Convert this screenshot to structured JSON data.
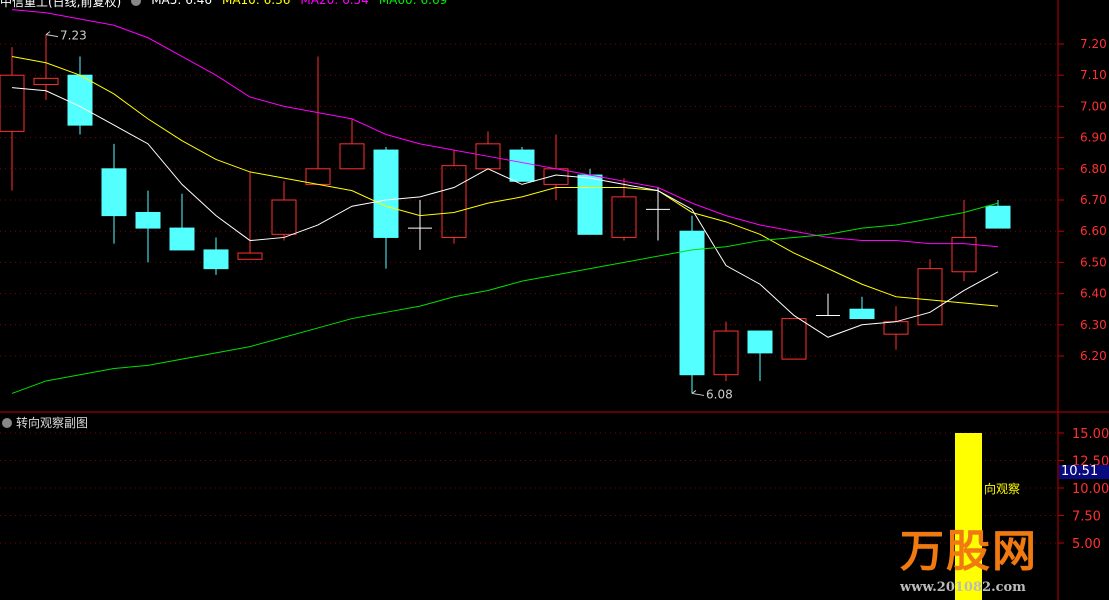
{
  "header": {
    "title": "中信重工(日线,前复权)",
    "ma5": "MA5: 6.46",
    "ma10": "MA10: 6.36",
    "ma20": "MA20: 6.54",
    "ma60": "MA60: 6.69"
  },
  "colors": {
    "up": "#ff3030",
    "down": "#54ffff",
    "flat": "#ffffff",
    "ma5": "#ffffff",
    "ma10": "#ffff00",
    "ma20": "#ff00ff",
    "ma60": "#00e000",
    "axis": "#c00000",
    "text_axis": "#ff3030"
  },
  "subchart": {
    "title": "转向观察副图",
    "series_label": "向观察",
    "current_value": "10.51",
    "bar_value": 15,
    "ticks": [
      "15.00",
      "12.50",
      "10.00",
      "7.50",
      "5.00"
    ]
  },
  "logo": {
    "text": "万股网",
    "url": "www.201082.com"
  },
  "chart_data": {
    "type": "candlestick",
    "yticks": [
      "7.20",
      "7.10",
      "7.00",
      "6.90",
      "6.80",
      "6.70",
      "6.60",
      "6.50",
      "6.40",
      "6.30",
      "6.20"
    ],
    "ylim": [
      6.05,
      7.3
    ],
    "annotations": [
      {
        "text": "7.23",
        "price": 7.23,
        "index": 1
      },
      {
        "text": "6.08",
        "price": 6.08,
        "index": 20
      }
    ],
    "ohlc": [
      [
        6.92,
        7.19,
        6.73,
        7.1
      ],
      [
        7.07,
        7.23,
        7.02,
        7.09
      ],
      [
        7.1,
        7.16,
        6.91,
        6.94
      ],
      [
        6.8,
        6.88,
        6.56,
        6.65
      ],
      [
        6.66,
        6.73,
        6.5,
        6.61
      ],
      [
        6.61,
        6.72,
        6.54,
        6.54
      ],
      [
        6.54,
        6.58,
        6.46,
        6.48
      ],
      [
        6.51,
        6.79,
        6.51,
        6.53
      ],
      [
        6.59,
        6.76,
        6.57,
        6.7
      ],
      [
        6.75,
        7.16,
        6.75,
        6.8
      ],
      [
        6.8,
        6.96,
        6.8,
        6.88
      ],
      [
        6.86,
        6.87,
        6.48,
        6.58
      ],
      [
        6.61,
        6.7,
        6.54,
        6.61
      ],
      [
        6.58,
        6.86,
        6.56,
        6.81
      ],
      [
        6.8,
        6.92,
        6.8,
        6.88
      ],
      [
        6.86,
        6.87,
        6.76,
        6.76
      ],
      [
        6.75,
        6.91,
        6.7,
        6.8
      ],
      [
        6.78,
        6.8,
        6.59,
        6.59
      ],
      [
        6.58,
        6.77,
        6.57,
        6.71
      ],
      [
        6.67,
        6.74,
        6.57,
        6.67
      ],
      [
        6.6,
        6.65,
        6.08,
        6.14
      ],
      [
        6.14,
        6.31,
        6.12,
        6.28
      ],
      [
        6.28,
        6.28,
        6.12,
        6.21
      ],
      [
        6.19,
        6.32,
        6.19,
        6.32
      ],
      [
        6.33,
        6.4,
        6.33,
        6.33
      ],
      [
        6.35,
        6.39,
        6.32,
        6.32
      ],
      [
        6.27,
        6.36,
        6.22,
        6.31
      ],
      [
        6.3,
        6.51,
        6.3,
        6.48
      ],
      [
        6.47,
        6.7,
        6.44,
        6.58
      ],
      [
        6.68,
        6.7,
        6.61,
        6.61
      ]
    ],
    "ma5": [
      7.06,
      7.05,
      7.0,
      6.94,
      6.88,
      6.75,
      6.65,
      6.57,
      6.58,
      6.62,
      6.68,
      6.7,
      6.71,
      6.74,
      6.8,
      6.75,
      6.78,
      6.77,
      6.75,
      6.73,
      6.67,
      6.49,
      6.43,
      6.33,
      6.26,
      6.3,
      6.31,
      6.34,
      6.41,
      6.47
    ],
    "ma10": [
      7.16,
      7.14,
      7.1,
      7.04,
      6.96,
      6.89,
      6.83,
      6.79,
      6.77,
      6.75,
      6.73,
      6.68,
      6.65,
      6.66,
      6.69,
      6.71,
      6.74,
      6.74,
      6.74,
      6.73,
      6.66,
      6.63,
      6.59,
      6.53,
      6.48,
      6.43,
      6.39,
      6.38,
      6.37,
      6.36
    ],
    "ma20": [
      7.31,
      7.3,
      7.28,
      7.26,
      7.22,
      7.16,
      7.1,
      7.03,
      7.0,
      6.98,
      6.96,
      6.91,
      6.88,
      6.86,
      6.84,
      6.82,
      6.8,
      6.78,
      6.76,
      6.74,
      6.69,
      6.65,
      6.62,
      6.6,
      6.58,
      6.57,
      6.57,
      6.56,
      6.56,
      6.55
    ],
    "ma60": [
      6.08,
      6.12,
      6.14,
      6.16,
      6.17,
      6.19,
      6.21,
      6.23,
      6.26,
      6.29,
      6.32,
      6.34,
      6.36,
      6.39,
      6.41,
      6.44,
      6.46,
      6.48,
      6.5,
      6.52,
      6.54,
      6.55,
      6.57,
      6.58,
      6.59,
      6.61,
      6.62,
      6.64,
      6.66,
      6.69
    ]
  }
}
